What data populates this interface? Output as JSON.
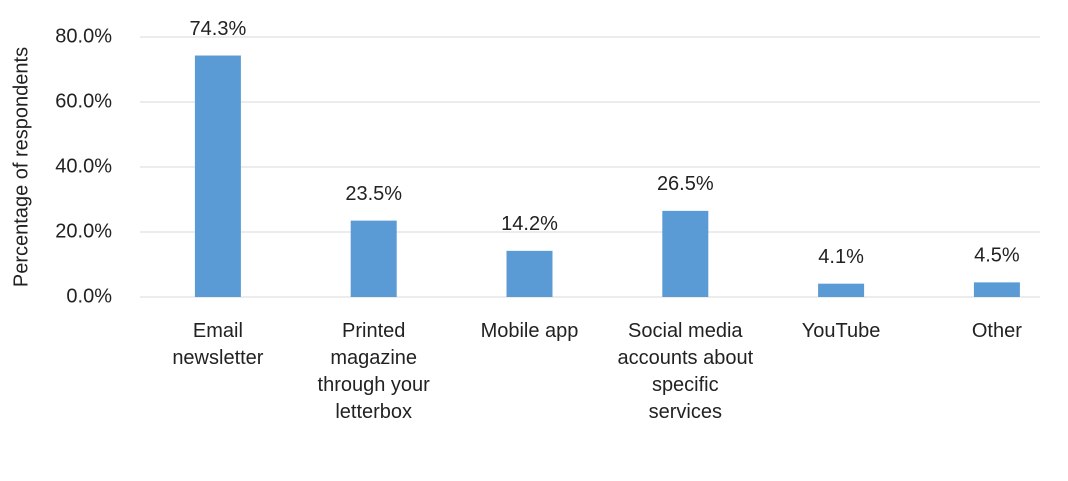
{
  "chart_data": {
    "type": "bar",
    "y_label": "Percentage of respondents",
    "categories": [
      "Email newsletter",
      "Printed magazine through your letterbox",
      "Mobile app",
      "Social media accounts about specific services",
      "YouTube",
      "Other"
    ],
    "values": [
      74.3,
      23.5,
      14.2,
      26.5,
      4.1,
      4.5
    ],
    "value_labels": [
      "74.3%",
      "23.5%",
      "14.2%",
      "26.5%",
      "4.1%",
      "4.5%"
    ],
    "color": "#5b9bd5",
    "ylim": [
      0,
      80
    ],
    "yticks": [
      {
        "value": 0,
        "label": "0.0%"
      },
      {
        "value": 20,
        "label": "20.0%"
      },
      {
        "value": 40,
        "label": "40.0%"
      },
      {
        "value": 60,
        "label": "60.0%"
      },
      {
        "value": 80,
        "label": "80.0%"
      }
    ],
    "grid": true
  }
}
